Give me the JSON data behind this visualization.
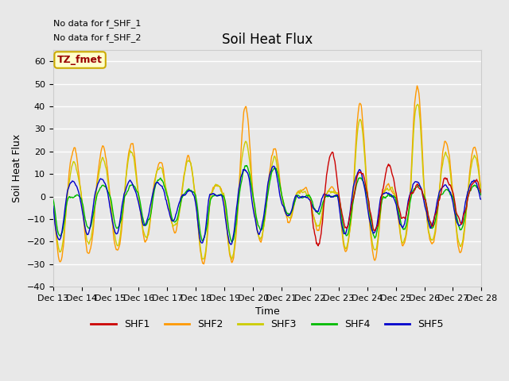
{
  "title": "Soil Heat Flux",
  "ylabel": "Soil Heat Flux",
  "xlabel": "Time",
  "ylim": [
    -40,
    65
  ],
  "yticks": [
    -40,
    -30,
    -20,
    -10,
    0,
    10,
    20,
    30,
    40,
    50,
    60
  ],
  "note_line1": "No data for f_SHF_1",
  "note_line2": "No data for f_SHF_2",
  "legend_label": "TZ_fmet",
  "series_names": [
    "SHF1",
    "SHF2",
    "SHF3",
    "SHF4",
    "SHF5"
  ],
  "series_colors": [
    "#cc0000",
    "#ff9900",
    "#cccc00",
    "#00bb00",
    "#0000cc"
  ],
  "background_color": "#e8e8e8",
  "plot_bg_color": "#e8e8e8",
  "grid_color": "#ffffff",
  "title_fontsize": 12,
  "label_fontsize": 9,
  "tick_fontsize": 8,
  "xtick_labels": [
    "Dec 13",
    "Dec 14",
    "Dec 15",
    "Dec 16",
    "Dec 17",
    "Dec 18",
    "Dec 19",
    "Dec 20",
    "Dec 21",
    "Dec 22",
    "Dec 23",
    "Dec 24",
    "Dec 25",
    "Dec 26",
    "Dec 27",
    "Dec 28"
  ]
}
